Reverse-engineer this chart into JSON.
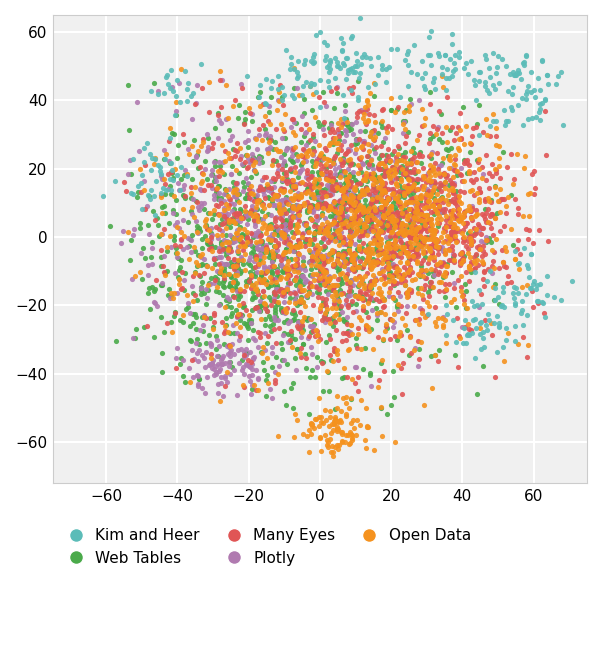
{
  "colors": {
    "Kim and Heer": "#5bbcb8",
    "Web Tables": "#4aaa4a",
    "Plotly": "#b07ab0",
    "Many Eyes": "#e05555",
    "Open Data": "#f5921e"
  },
  "xlim": [
    -75,
    75
  ],
  "ylim": [
    -72,
    65
  ],
  "xticks": [
    -60,
    -40,
    -20,
    0,
    20,
    40,
    60
  ],
  "yticks": [
    -60,
    -40,
    -20,
    0,
    20,
    40,
    60
  ],
  "background_color": "#f0f0f0",
  "grid_color": "white",
  "point_size": 14,
  "alpha": 0.9,
  "legend_fontsize": 11
}
